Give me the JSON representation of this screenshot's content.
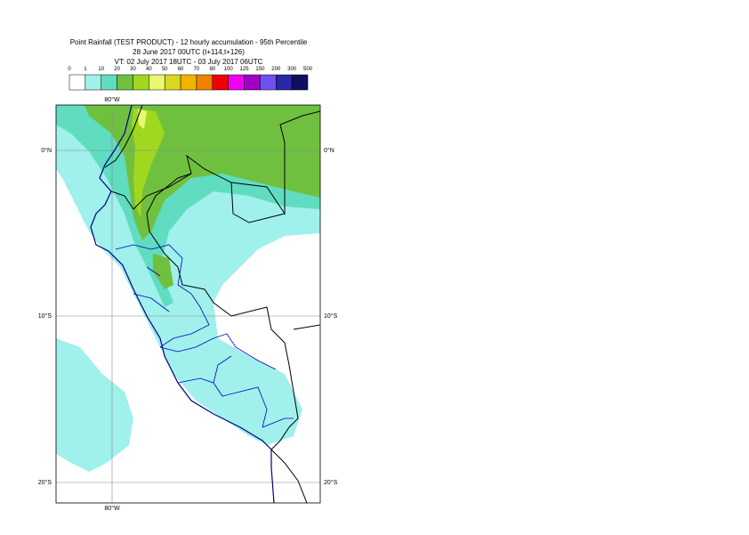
{
  "header": {
    "title": "Point Rainfall (TEST PRODUCT) - 12 hourly accumulation - 95th Percentile",
    "run": "28 June 2017 00UTC (t+114,t+126)",
    "valid": "VT: 02 July 2017 18UTC - 03 July 2017 06UTC"
  },
  "legend": {
    "ticks": [
      0,
      1,
      10,
      20,
      30,
      40,
      50,
      60,
      70,
      80,
      100,
      125,
      150,
      200,
      300,
      500
    ],
    "colors": [
      "#ffffff",
      "#a0f0ec",
      "#60dcc0",
      "#70c040",
      "#a0d820",
      "#e8f870",
      "#d8d820",
      "#f0b400",
      "#f08000",
      "#f00000",
      "#f000f0",
      "#a000c8",
      "#7050f0",
      "#2828a8",
      "#101060"
    ]
  },
  "map": {
    "lon_label": "80°W",
    "lat_labels": [
      "0°N",
      "10°S",
      "20°S"
    ]
  }
}
